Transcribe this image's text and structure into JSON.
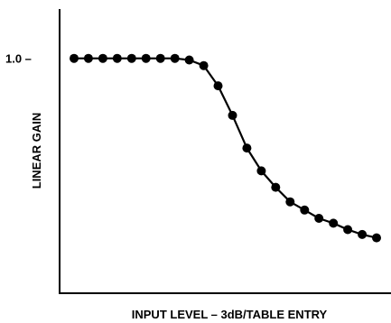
{
  "chart_data": {
    "type": "line",
    "title": "",
    "xlabel": "INPUT LEVEL – 3dB/TABLE ENTRY",
    "ylabel": "LINEAR GAIN",
    "y_tick_labels": [
      {
        "value": 1.0,
        "label": "1.0 –"
      }
    ],
    "xlim": [
      0,
      23
    ],
    "ylim": [
      0,
      1.21
    ],
    "grid": false,
    "legend": "none",
    "marker": "circle",
    "series": [
      {
        "x": [
          1,
          2,
          3,
          4,
          5,
          6,
          7,
          8,
          9,
          10,
          11,
          12,
          13,
          14,
          15,
          16,
          17,
          18,
          19,
          20,
          21,
          22
        ],
        "y": [
          1.0,
          1.0,
          1.0,
          1.0,
          1.0,
          1.0,
          1.0,
          1.0,
          0.993,
          0.969,
          0.883,
          0.757,
          0.618,
          0.521,
          0.451,
          0.389,
          0.354,
          0.319,
          0.298,
          0.271,
          0.25,
          0.236
        ],
        "color": "#000000"
      }
    ]
  }
}
